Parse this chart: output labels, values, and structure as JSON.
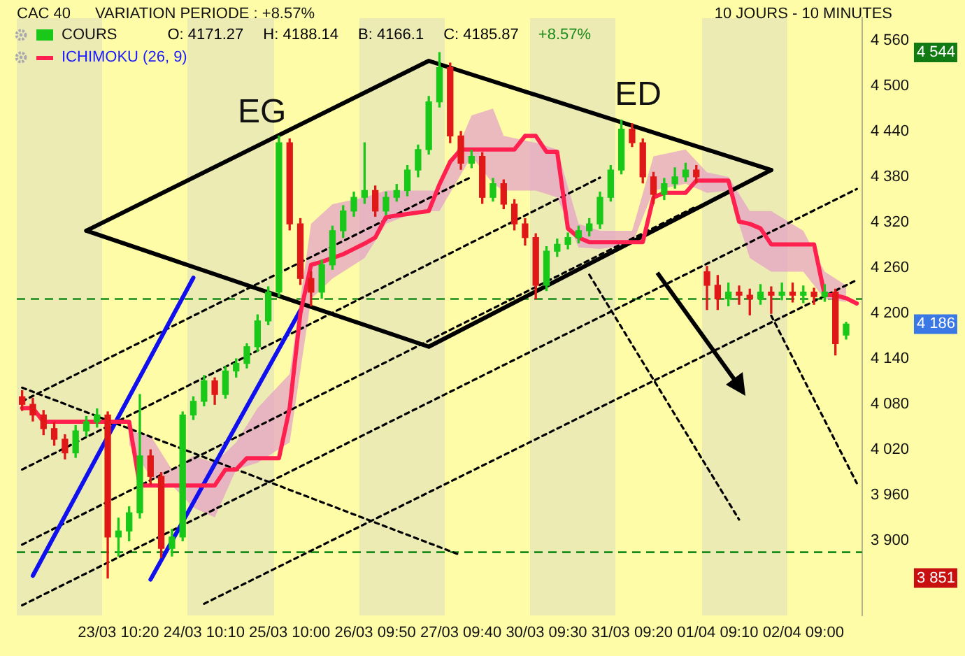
{
  "chart_data": {
    "type": "candlestick",
    "title": "CAC 40",
    "subtitle": "VARIATION PERIODE : +8.57%",
    "legend": "top left",
    "grid": false,
    "categories": [
      null,
      null,
      null,
      null,
      null,
      null,
      null,
      null,
      null,
      "23/03 10:20",
      null,
      null,
      null,
      null,
      null,
      null,
      null,
      "24/03 10:10",
      null,
      null,
      null,
      null,
      null,
      null,
      null,
      "25/03 10:00",
      null,
      null,
      null,
      null,
      null,
      null,
      null,
      "26/03 09:50",
      null,
      null,
      null,
      null,
      null,
      null,
      null,
      "27/03 09:40",
      null,
      null,
      null,
      null,
      null,
      null,
      null,
      "30/03 09:30",
      null,
      null,
      null,
      null,
      null,
      null,
      null,
      "31/03 09:20",
      null,
      null,
      null,
      null,
      null,
      null,
      null,
      "01/04 09:10",
      null,
      null,
      null,
      null,
      null,
      null,
      null,
      "02/04 09:00",
      null,
      null,
      null,
      null,
      null
    ],
    "ylim": [
      3802,
      4590
    ],
    "yticks": [
      {
        "value": 3900,
        "label": "3 900"
      },
      {
        "value": 3960,
        "label": "3 960"
      },
      {
        "value": 4020,
        "label": "4 020"
      },
      {
        "value": 4080,
        "label": "4 080"
      },
      {
        "value": 4140,
        "label": "4 140"
      },
      {
        "value": 4200,
        "label": "4 200"
      },
      {
        "value": 4260,
        "label": "4 260"
      },
      {
        "value": 4320,
        "label": "4 320"
      },
      {
        "value": 4380,
        "label": "4 380"
      },
      {
        "value": 4440,
        "label": "4 440"
      },
      {
        "value": 4500,
        "label": "4 500"
      },
      {
        "value": 4560,
        "label": "4 560"
      }
    ],
    "ref_lines": [
      {
        "axis": "y",
        "value": 4219,
        "color": "#1a8a1a",
        "line_style": "dashed"
      },
      {
        "axis": "y",
        "value": 3885,
        "color": "#1a8a1a",
        "line_style": "dashed"
      }
    ],
    "annotations": [
      "10 JOURS - 10 MINUTES",
      "O: 4171.27",
      "H: 4188.14",
      "B: 4166.1",
      "C: 4185.87",
      "+8.57%",
      "EG",
      "ED",
      "4 544",
      "4 186",
      "3 851"
    ],
    "series": [
      {
        "name": "COURS",
        "ohlc": [
          [
            4090,
            4098,
            4072,
            4080
          ],
          [
            4080,
            4088,
            4058,
            4066
          ],
          [
            4066,
            4072,
            4040,
            4048
          ],
          [
            4048,
            4056,
            4026,
            4034
          ],
          [
            4034,
            4040,
            4008,
            4016
          ],
          [
            4016,
            4052,
            4010,
            4045
          ],
          [
            4045,
            4064,
            4038,
            4057
          ],
          [
            4057,
            4074,
            4050,
            4066
          ],
          [
            4066,
            4070,
            3851,
            3905
          ],
          [
            3905,
            3930,
            3880,
            3913
          ],
          [
            3913,
            3945,
            3900,
            3937
          ],
          [
            3937,
            4093,
            3930,
            4012
          ],
          [
            4012,
            4020,
            3975,
            3985
          ],
          [
            3985,
            3990,
            3878,
            3890
          ],
          [
            3890,
            3915,
            3880,
            3905
          ],
          [
            3905,
            4070,
            3900,
            4066
          ],
          [
            4066,
            4090,
            4060,
            4084
          ],
          [
            4084,
            4118,
            4078,
            4111
          ],
          [
            4111,
            4115,
            4080,
            4093
          ],
          [
            4093,
            4130,
            4088,
            4124
          ],
          [
            4124,
            4140,
            4116,
            4134
          ],
          [
            4134,
            4160,
            4128,
            4156
          ],
          [
            4156,
            4198,
            4150,
            4190
          ],
          [
            4190,
            4235,
            4185,
            4228
          ],
          [
            4228,
            4434,
            4222,
            4425
          ],
          [
            4425,
            4430,
            4310,
            4318
          ],
          [
            4318,
            4325,
            4238,
            4246
          ],
          [
            4246,
            4255,
            4210,
            4228
          ],
          [
            4228,
            4270,
            4220,
            4264
          ],
          [
            4264,
            4315,
            4258,
            4309
          ],
          [
            4309,
            4342,
            4300,
            4335
          ],
          [
            4335,
            4360,
            4328,
            4353
          ],
          [
            4353,
            4425,
            4345,
            4362
          ],
          [
            4362,
            4368,
            4328,
            4335
          ],
          [
            4335,
            4360,
            4330,
            4353
          ],
          [
            4353,
            4370,
            4348,
            4362
          ],
          [
            4362,
            4395,
            4355,
            4389
          ],
          [
            4389,
            4422,
            4380,
            4416
          ],
          [
            4416,
            4486,
            4410,
            4479
          ],
          [
            4479,
            4544,
            4472,
            4524
          ],
          [
            4524,
            4530,
            4425,
            4434
          ],
          [
            4434,
            4440,
            4390,
            4398
          ],
          [
            4398,
            4415,
            4392,
            4407
          ],
          [
            4407,
            4412,
            4345,
            4353
          ],
          [
            4353,
            4378,
            4348,
            4371
          ],
          [
            4371,
            4376,
            4338,
            4344
          ],
          [
            4344,
            4350,
            4310,
            4318
          ],
          [
            4318,
            4325,
            4290,
            4300
          ],
          [
            4300,
            4305,
            4219,
            4237
          ],
          [
            4237,
            4288,
            4230,
            4282
          ],
          [
            4282,
            4298,
            4275,
            4291
          ],
          [
            4291,
            4306,
            4285,
            4300
          ],
          [
            4300,
            4315,
            4293,
            4309
          ],
          [
            4309,
            4325,
            4302,
            4318
          ],
          [
            4318,
            4360,
            4312,
            4353
          ],
          [
            4353,
            4395,
            4348,
            4389
          ],
          [
            4389,
            4455,
            4384,
            4443
          ],
          [
            4443,
            4450,
            4420,
            4425
          ],
          [
            4425,
            4430,
            4372,
            4380
          ],
          [
            4380,
            4386,
            4345,
            4357
          ],
          [
            4357,
            4378,
            4350,
            4371
          ],
          [
            4371,
            4392,
            4365,
            4380
          ],
          [
            4380,
            4398,
            4374,
            4389
          ],
          [
            4389,
            4395,
            4372,
            4380
          ],
          [
            4255,
            4262,
            4205,
            4237
          ],
          [
            4237,
            4250,
            4205,
            4219
          ],
          [
            4219,
            4240,
            4210,
            4228
          ],
          [
            4228,
            4236,
            4212,
            4224
          ],
          [
            4224,
            4232,
            4198,
            4219
          ],
          [
            4219,
            4238,
            4212,
            4228
          ],
          [
            4228,
            4235,
            4200,
            4224
          ],
          [
            4224,
            4240,
            4218,
            4228
          ],
          [
            4228,
            4240,
            4215,
            4224
          ],
          [
            4224,
            4236,
            4214,
            4228
          ],
          [
            4228,
            4233,
            4212,
            4222
          ],
          [
            4222,
            4238,
            4216,
            4228
          ],
          [
            4228,
            4232,
            4145,
            4160
          ],
          [
            4171.27,
            4188.14,
            4166.1,
            4185.87
          ],
          null
        ]
      },
      {
        "name": "ICHIMOKU (26, 9)",
        "type": "line",
        "color": "#ff2050",
        "values": [
          4075,
          4075,
          4057,
          4057,
          4057,
          4057,
          4057,
          4057,
          4057,
          4057,
          4057,
          3973,
          3973,
          3973,
          3973,
          3973,
          3973,
          3973,
          3973,
          3994,
          3994,
          4009,
          4009,
          4009,
          4009,
          4075,
          4200,
          4264,
          4268,
          4273,
          4278,
          4285,
          4292,
          4300,
          4327,
          4329,
          4331,
          4333,
          4335,
          4370,
          4400,
          4416,
          4416,
          4416,
          4416,
          4416,
          4416,
          4434,
          4434,
          4413,
          4413,
          4312,
          4300,
          4294,
          4294,
          4294,
          4294,
          4294,
          4294,
          4353,
          4359,
          4359,
          4359,
          4375,
          4375,
          4375,
          4375,
          4321,
          4318,
          4312,
          4291,
          4291,
          4291,
          4291,
          4291,
          4224,
          4224,
          4220,
          4213
        ]
      },
      {
        "type": "line",
        "color": "#e4a3c4",
        "values": [
          null,
          null,
          null,
          null,
          null,
          null,
          null,
          null,
          null,
          null,
          null,
          null,
          null,
          null,
          null,
          null,
          null,
          null,
          null,
          null,
          null,
          null,
          null,
          null,
          null,
          null,
          null,
          null,
          null,
          null,
          null,
          null,
          null,
          null,
          null,
          null,
          null,
          null,
          null,
          null,
          null,
          null,
          null,
          null,
          null,
          null,
          null,
          null,
          null,
          null,
          null,
          null,
          null,
          null,
          null,
          null,
          null,
          null,
          null,
          null,
          null,
          null,
          null,
          null,
          null,
          null,
          null,
          null,
          null,
          null,
          null,
          null,
          null,
          null,
          null,
          null,
          null,
          null,
          null
        ],
        "upper": [
          null,
          null,
          null,
          null,
          null,
          null,
          null,
          null,
          null,
          null,
          4045,
          null,
          4039,
          null,
          3994,
          null,
          4012,
          null,
          4003,
          null,
          4030,
          null,
          4075,
          null,
          null,
          4120,
          null,
          4318,
          null,
          4344,
          null,
          null,
          4353,
          null,
          4362,
          null,
          null,
          4362,
          null,
          4362,
          null,
          null,
          4461,
          null,
          4470,
          4434,
          null,
          null,
          4425,
          null,
          4416,
          null,
          4318,
          null,
          4309,
          null,
          null,
          4309,
          null,
          4407,
          null,
          null,
          4416,
          null,
          4386,
          null,
          4380,
          null,
          4335,
          null,
          4335,
          null,
          null,
          4309,
          null,
          4255,
          null,
          4237,
          null
        ],
        "lower": [
          null,
          null,
          null,
          null,
          null,
          null,
          null,
          null,
          null,
          null,
          4027,
          null,
          3985,
          null,
          3973,
          null,
          3944,
          null,
          3931,
          null,
          3994,
          null,
          4003,
          null,
          null,
          4030,
          null,
          4219,
          null,
          4246,
          null,
          null,
          4273,
          null,
          4318,
          null,
          null,
          4335,
          null,
          4335,
          null,
          null,
          4407,
          null,
          4371,
          4362,
          null,
          null,
          4362,
          null,
          4353,
          null,
          4287,
          null,
          4285,
          null,
          null,
          4291,
          null,
          4362,
          null,
          null,
          4371,
          null,
          4359,
          null,
          4362,
          null,
          4273,
          null,
          4255,
          null,
          null,
          4255,
          null,
          4219,
          null,
          4215,
          null
        ]
      },
      {
        "type": "line",
        "color": "#000000",
        "values": [
          null,
          null,
          null,
          null,
          null,
          null,
          4309,
          null,
          null,
          null,
          null,
          null,
          null,
          null,
          null,
          null,
          null,
          null,
          null,
          null,
          null,
          null,
          null,
          null,
          null,
          null,
          null,
          null,
          null,
          null,
          null,
          null,
          null,
          null,
          null,
          null,
          null,
          null,
          4533,
          null,
          null,
          null,
          null,
          null,
          null,
          null,
          null,
          null,
          null,
          null,
          null,
          null,
          null,
          null,
          null,
          null,
          null,
          null,
          null,
          null,
          null,
          null,
          null,
          null,
          null,
          null,
          null,
          null,
          null,
          null,
          4389,
          null,
          null,
          null,
          null,
          null,
          null,
          null,
          null
        ]
      },
      {
        "type": "line",
        "color": "#000000",
        "values": [
          null,
          null,
          null,
          null,
          null,
          null,
          4309,
          null,
          null,
          null,
          null,
          null,
          null,
          null,
          null,
          null,
          null,
          null,
          null,
          null,
          null,
          null,
          null,
          null,
          null,
          null,
          null,
          null,
          null,
          null,
          null,
          null,
          null,
          null,
          null,
          null,
          null,
          null,
          4156,
          null,
          null,
          null,
          null,
          null,
          null,
          null,
          null,
          null,
          null,
          null,
          null,
          null,
          null,
          null,
          null,
          null,
          null,
          null,
          null,
          null,
          null,
          null,
          null,
          null,
          null,
          null,
          null,
          null,
          null,
          null,
          4389,
          null,
          null,
          null,
          null,
          null,
          null,
          null,
          null
        ]
      },
      {
        "type": "line",
        "color": "#1010ee",
        "values": [
          null,
          3854,
          null,
          null,
          null,
          null,
          null,
          null,
          null,
          null,
          null,
          null,
          null,
          null,
          null,
          null,
          4247,
          null,
          null,
          null,
          null,
          null,
          null,
          null,
          null,
          null,
          null,
          null,
          null,
          null,
          null,
          null,
          null,
          null,
          null,
          null,
          null,
          null,
          null,
          null,
          null,
          null,
          null,
          null,
          null,
          null,
          null,
          null,
          null,
          null,
          null,
          null,
          null,
          null,
          null,
          null,
          null,
          null,
          null,
          null,
          null,
          null,
          null,
          null,
          null,
          null,
          null,
          null,
          null,
          null,
          null,
          null,
          null,
          null,
          null,
          null,
          null,
          null,
          null
        ]
      },
      {
        "type": "line",
        "color": "#1010ee",
        "values": [
          null,
          null,
          null,
          null,
          null,
          null,
          null,
          null,
          null,
          null,
          null,
          null,
          3849,
          null,
          null,
          null,
          null,
          null,
          null,
          null,
          null,
          null,
          null,
          null,
          null,
          null,
          4204,
          null,
          null,
          null,
          null,
          null,
          null,
          null,
          null,
          null,
          null,
          null,
          null,
          null,
          null,
          null,
          null,
          null,
          null,
          null,
          null,
          null,
          null,
          null,
          null,
          null,
          null,
          null,
          null,
          null,
          null,
          null,
          null,
          null,
          null,
          null,
          null,
          null,
          null,
          null,
          null,
          null,
          null,
          null,
          null,
          null,
          null,
          null,
          null,
          null,
          null,
          null,
          null
        ]
      },
      {
        "type": "line",
        "color": "#000000",
        "line_style": "dotted",
        "values": [
          3895,
          null,
          null,
          null,
          null,
          null,
          null,
          null,
          null,
          null,
          null,
          null,
          null,
          null,
          null,
          null,
          null,
          null,
          null,
          null,
          null,
          null,
          null,
          null,
          null,
          null,
          null,
          null,
          null,
          null,
          null,
          null,
          null,
          null,
          null,
          null,
          null,
          null,
          null,
          null,
          null,
          null,
          null,
          null,
          null,
          null,
          null,
          null,
          null,
          null,
          null,
          null,
          null,
          null,
          null,
          null,
          null,
          null,
          null,
          null,
          null,
          null,
          null,
          4341,
          null,
          null,
          null,
          null,
          null,
          null,
          null,
          null,
          null,
          null,
          null,
          null,
          null,
          null,
          null
        ]
      },
      {
        "type": "line",
        "color": "#000000",
        "line_style": "dotted",
        "values": [
          3815,
          null,
          null,
          null,
          null,
          null,
          null,
          null,
          null,
          null,
          null,
          null,
          null,
          null,
          null,
          null,
          null,
          null,
          null,
          null,
          null,
          null,
          null,
          null,
          null,
          null,
          null,
          null,
          null,
          null,
          null,
          null,
          null,
          null,
          null,
          null,
          null,
          null,
          null,
          null,
          null,
          null,
          null,
          null,
          null,
          null,
          null,
          null,
          null,
          null,
          null,
          null,
          null,
          null,
          null,
          null,
          null,
          null,
          null,
          null,
          null,
          null,
          null,
          null,
          null,
          null,
          null,
          null,
          null,
          null,
          null,
          null,
          null,
          null,
          null,
          null,
          null,
          null,
          4364
        ]
      },
      {
        "type": "line",
        "color": "#000000",
        "line_style": "dotted",
        "values": [
          null,
          null,
          null,
          null,
          null,
          null,
          null,
          null,
          null,
          null,
          null,
          null,
          null,
          null,
          null,
          null,
          null,
          3817,
          null,
          null,
          null,
          null,
          null,
          null,
          null,
          null,
          null,
          null,
          null,
          null,
          null,
          null,
          null,
          null,
          null,
          null,
          null,
          null,
          null,
          null,
          null,
          null,
          null,
          null,
          null,
          null,
          null,
          null,
          null,
          null,
          null,
          null,
          null,
          null,
          null,
          null,
          null,
          null,
          null,
          null,
          null,
          null,
          null,
          null,
          null,
          null,
          null,
          null,
          null,
          null,
          null,
          null,
          null,
          null,
          null,
          null,
          null,
          null,
          4244
        ]
      },
      {
        "type": "line",
        "color": "#000000",
        "line_style": "dotted",
        "values": [
          3994,
          null,
          null,
          null,
          null,
          null,
          null,
          null,
          null,
          null,
          null,
          null,
          null,
          null,
          null,
          null,
          null,
          null,
          null,
          null,
          null,
          null,
          null,
          null,
          null,
          null,
          null,
          null,
          null,
          null,
          null,
          null,
          null,
          null,
          null,
          null,
          null,
          null,
          null,
          null,
          null,
          null,
          null,
          null,
          null,
          null,
          null,
          null,
          null,
          null,
          null,
          null,
          null,
          null,
          4379,
          null,
          null,
          null,
          null,
          null,
          null,
          null,
          null,
          null,
          null,
          null,
          null,
          null,
          null,
          null,
          null,
          null,
          null,
          null,
          null,
          null,
          null,
          null,
          null
        ]
      },
      {
        "type": "line",
        "color": "#000000",
        "line_style": "dotted",
        "values": [
          4084,
          null,
          null,
          null,
          null,
          null,
          null,
          null,
          null,
          null,
          null,
          null,
          null,
          null,
          null,
          null,
          null,
          null,
          null,
          null,
          null,
          null,
          null,
          null,
          null,
          null,
          null,
          null,
          null,
          null,
          null,
          null,
          null,
          null,
          null,
          null,
          null,
          null,
          null,
          null,
          null,
          null,
          4380,
          null,
          null,
          null,
          null,
          null,
          null,
          null,
          null,
          null,
          null,
          null,
          null,
          null,
          null,
          null,
          null,
          null,
          null,
          null,
          null,
          null,
          null,
          null,
          null,
          null,
          null,
          null,
          null,
          null,
          null,
          null,
          null,
          null,
          null,
          null,
          null
        ]
      },
      {
        "type": "line",
        "color": "#000000",
        "line_style": "dotted",
        "values": [
          4102,
          null,
          null,
          null,
          null,
          null,
          null,
          null,
          null,
          null,
          null,
          null,
          null,
          null,
          null,
          null,
          null,
          null,
          null,
          null,
          null,
          null,
          null,
          null,
          null,
          null,
          null,
          null,
          null,
          null,
          null,
          null,
          null,
          null,
          null,
          null,
          null,
          null,
          null,
          null,
          null,
          3881,
          null,
          null,
          null,
          null,
          null,
          null,
          null,
          null,
          null,
          null,
          null,
          null,
          null,
          null,
          null,
          null,
          null,
          null,
          null,
          null,
          null,
          null,
          null,
          null,
          null,
          null,
          null,
          null,
          null,
          null,
          null,
          null,
          null,
          null,
          null,
          null,
          null
        ]
      },
      {
        "type": "line",
        "color": "#000000",
        "line_style": "dotted",
        "values": [
          null,
          null,
          null,
          null,
          null,
          null,
          null,
          null,
          null,
          null,
          null,
          null,
          null,
          null,
          null,
          null,
          null,
          null,
          null,
          null,
          null,
          null,
          null,
          null,
          null,
          null,
          null,
          null,
          null,
          null,
          null,
          null,
          null,
          null,
          null,
          null,
          null,
          null,
          null,
          null,
          null,
          null,
          null,
          null,
          null,
          null,
          null,
          null,
          null,
          null,
          null,
          null,
          null,
          4251,
          null,
          null,
          null,
          null,
          null,
          null,
          null,
          null,
          null,
          null,
          null,
          null,
          null,
          3928,
          null,
          null,
          null,
          null,
          null,
          null,
          null,
          null,
          null,
          null,
          null
        ]
      },
      {
        "type": "line",
        "color": "#000000",
        "line_style": "dotted",
        "values": [
          null,
          null,
          null,
          null,
          null,
          null,
          null,
          null,
          null,
          null,
          null,
          null,
          null,
          null,
          null,
          null,
          null,
          null,
          null,
          null,
          null,
          null,
          null,
          null,
          null,
          null,
          null,
          null,
          null,
          null,
          null,
          null,
          null,
          null,
          null,
          null,
          null,
          null,
          null,
          null,
          null,
          null,
          null,
          null,
          null,
          null,
          null,
          null,
          null,
          null,
          null,
          null,
          null,
          null,
          null,
          null,
          null,
          null,
          null,
          null,
          null,
          null,
          null,
          null,
          null,
          null,
          null,
          null,
          null,
          null,
          4197,
          null,
          null,
          null,
          null,
          null,
          null,
          null,
          3976
        ]
      }
    ]
  }
}
